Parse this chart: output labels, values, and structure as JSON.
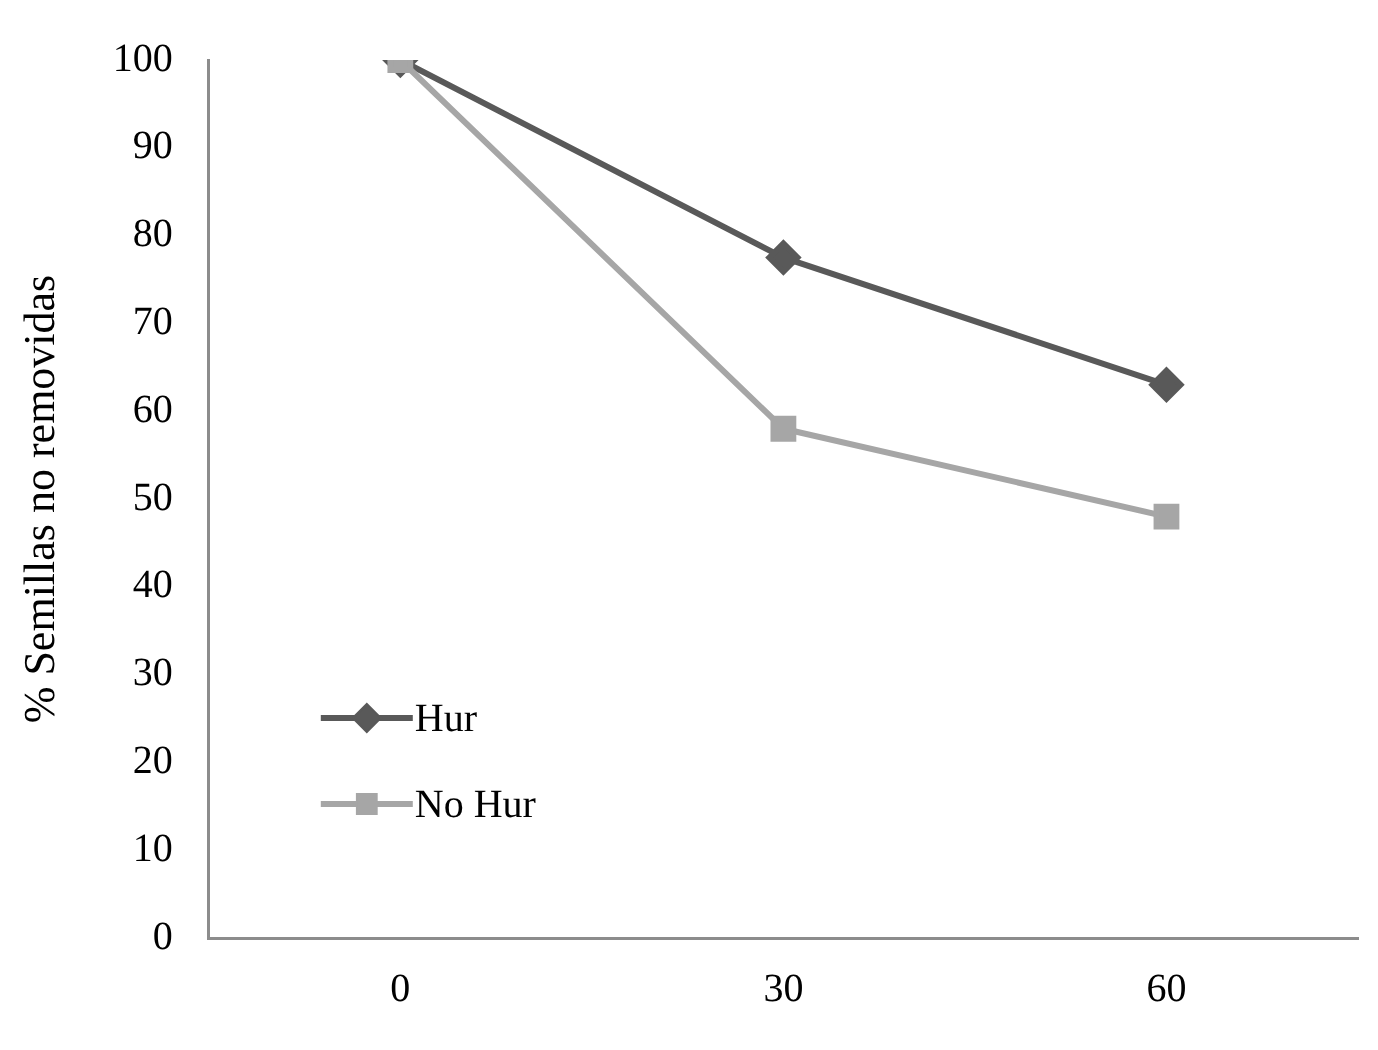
{
  "chart_data": {
    "type": "line",
    "ylabel": "% Semillas no removidas",
    "categories": [
      "0",
      "30",
      "60"
    ],
    "series": [
      {
        "name": "Hur",
        "color": "#595959",
        "values": [
          100,
          77.5,
          63
        ],
        "marker": "diamond"
      },
      {
        "name": "No Hur",
        "color": "#a6a6a6",
        "values": [
          100,
          58,
          48
        ],
        "marker": "square"
      }
    ],
    "ylim": [
      0,
      100
    ],
    "yticks": [
      0,
      10,
      20,
      30,
      40,
      50,
      60,
      70,
      80,
      90,
      100
    ],
    "grid": false,
    "legend": "bottom left"
  }
}
